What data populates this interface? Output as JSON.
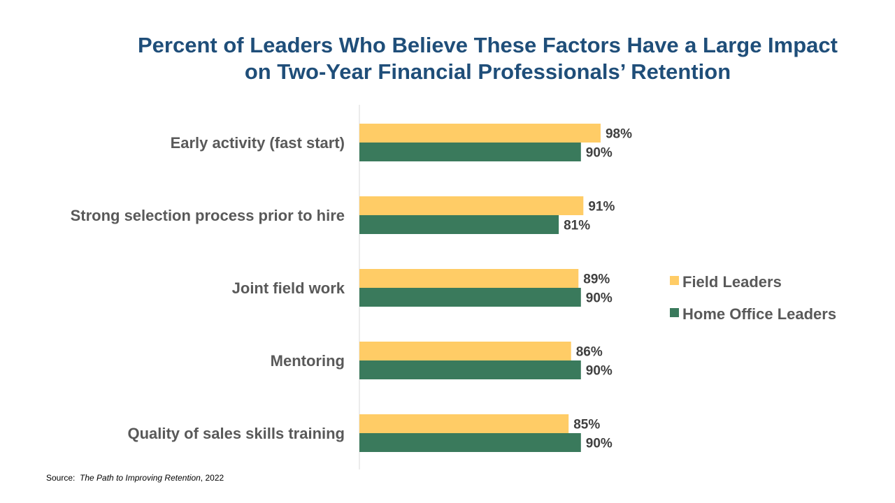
{
  "chart_data": {
    "type": "bar",
    "orientation": "horizontal",
    "title": "Percent of Leaders Who Believe These Factors Have a Large Impact on Two-Year Financial Professionals’ Retention",
    "title_lines": [
      "Percent of Leaders Who Believe These Factors Have a Large Impact",
      "on Two-Year Financial Professionals’ Retention"
    ],
    "categories": [
      "Early activity (fast start)",
      "Strong selection process prior to hire",
      "Joint field work",
      "Mentoring",
      "Quality of sales skills training"
    ],
    "series": [
      {
        "name": "Field Leaders",
        "values": [
          98,
          91,
          89,
          86,
          85
        ],
        "labels": [
          "98%",
          "91%",
          "89%",
          "86%",
          "85%"
        ],
        "color": "#FFCC66"
      },
      {
        "name": "Home Office Leaders",
        "values": [
          90,
          81,
          90,
          90,
          90
        ],
        "labels": [
          "90%",
          "81%",
          "90%",
          "90%",
          "90%"
        ],
        "color": "#3A7A5C"
      }
    ],
    "xlim": [
      0,
      100
    ],
    "grid": false,
    "legend": "right",
    "unit": "%"
  },
  "source": {
    "prefix": "Source:",
    "title": "The Path to Improving Retention",
    "suffix": ", 2022"
  }
}
